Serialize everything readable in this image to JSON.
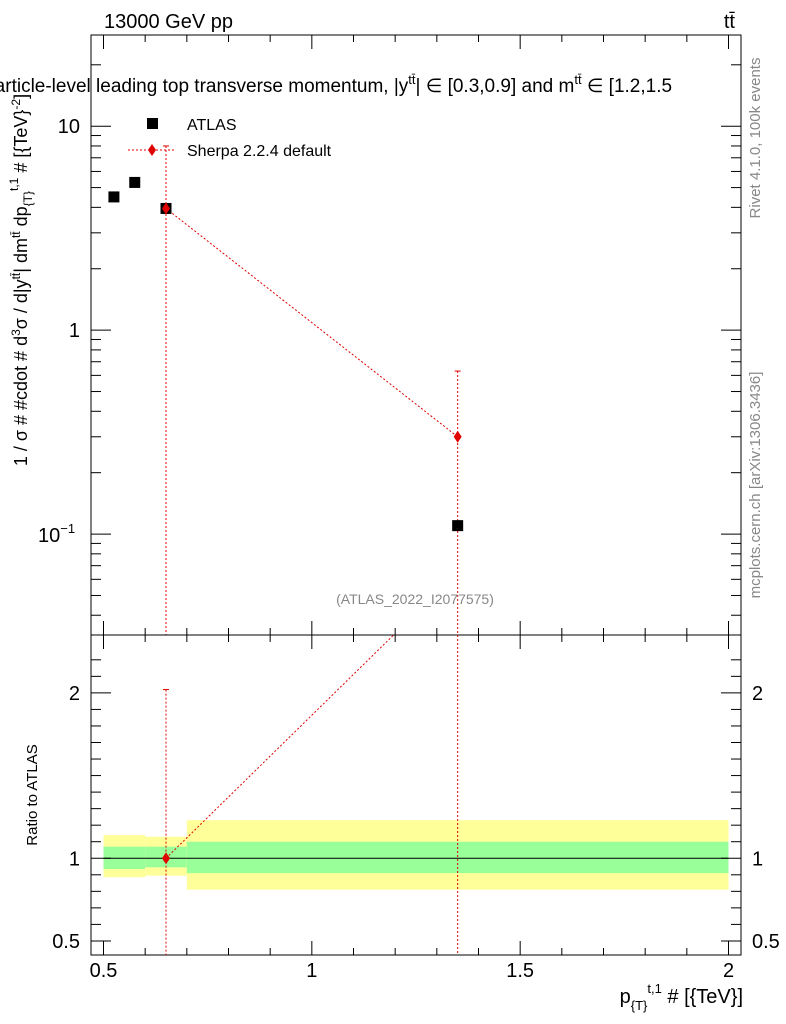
{
  "header": {
    "energy": "13000 GeV pp",
    "process": "tt̄",
    "title": "Particle-level leading top transverse momentum, |y",
    "title_mid": "tt̄",
    "title_tail": "| ∈ [0.3,0.9] and m",
    "title_m_sup": "tt̄",
    "title_end": " ∈ [1.2,1.5"
  },
  "side": {
    "rivet": "Rivet 4.1.0,  100k events",
    "mcplots": "mcplots.cern.ch [arXiv:1306.3436]"
  },
  "watermark": "(ATLAS_2022_I2077575)",
  "legend": {
    "data_label": "ATLAS",
    "mc_label": "Sherpa 2.2.4 default"
  },
  "colors": {
    "data": "#000000",
    "mc": "#e00000",
    "band_inner": "#99ff99",
    "band_outer": "#ffff99"
  },
  "chart_data": [
    {
      "type": "scatter",
      "panel": "main",
      "yscale": "log",
      "ylabel": "1 / σ # #cdot # d³σ / d|y^{tt̄}| dm^{tt̄} dp_{T}^{t,1} # [{TeV}^{-2}]",
      "ylim": [
        0.032,
        28
      ],
      "xlim": [
        0.47,
        2.03
      ],
      "yticks": [
        {
          "value": 10,
          "label": "10"
        },
        {
          "value": 1,
          "label": "1"
        },
        {
          "value": 0.1,
          "label": "10",
          "exp": "−1"
        }
      ],
      "series": [
        {
          "name": "ATLAS",
          "points": [
            {
              "x": 0.525,
              "y": 4.5
            },
            {
              "x": 0.575,
              "y": 5.3
            },
            {
              "x": 0.65,
              "y": 3.95
            },
            {
              "x": 1.35,
              "y": 0.11
            }
          ]
        },
        {
          "name": "Sherpa 2.2.4 default",
          "points": [
            {
              "x": 0.65,
              "y": 3.95,
              "ylo": 0.02,
              "yhi": 8.0
            },
            {
              "x": 1.35,
              "y": 0.3,
              "ylo": 0.02,
              "yhi": 0.63
            }
          ]
        }
      ]
    },
    {
      "type": "line",
      "panel": "ratio",
      "ylabel": "Ratio to ATLAS",
      "xlabel": "p_{T}^{t,1} # [{TeV}]",
      "xlim": [
        0.47,
        2.03
      ],
      "ylim": [
        0.415,
        2.35
      ],
      "xticks": [
        {
          "value": 0.5,
          "label": "0.5"
        },
        {
          "value": 1,
          "label": "1"
        },
        {
          "value": 1.5,
          "label": "1.5"
        },
        {
          "value": 2,
          "label": "2"
        }
      ],
      "yticks": [
        {
          "value": 0.5,
          "label": "0.5"
        },
        {
          "value": 1,
          "label": "1"
        },
        {
          "value": 2,
          "label": "2"
        }
      ],
      "bands": [
        {
          "x0": 0.5,
          "x1": 0.6,
          "inner": [
            0.935,
            1.07
          ],
          "outer": [
            0.885,
            1.14
          ]
        },
        {
          "x0": 0.6,
          "x1": 0.7,
          "inner": [
            0.945,
            1.07
          ],
          "outer": [
            0.895,
            1.13
          ]
        },
        {
          "x0": 0.7,
          "x1": 2.0,
          "inner": [
            0.91,
            1.1
          ],
          "outer": [
            0.81,
            1.23
          ]
        }
      ],
      "series": [
        {
          "name": "Sherpa 2.2.4 default",
          "points": [
            {
              "x": 0.65,
              "y": 1.0,
              "ylo": 0.3,
              "yhi": 2.02
            },
            {
              "x": 1.35,
              "y": 2.73
            }
          ]
        }
      ]
    }
  ]
}
